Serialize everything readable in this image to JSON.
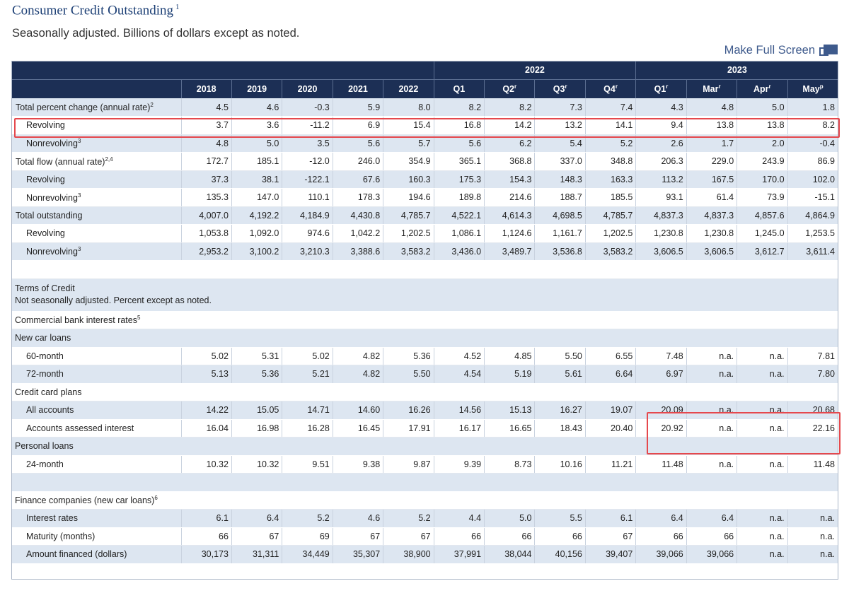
{
  "title": "Consumer Credit Outstanding",
  "title_note": "1",
  "subtitle": "Seasonally adjusted. Billions of dollars except as noted.",
  "fullscreen_label": "Make Full Screen",
  "fullscreen_icon": "fullscreen-icon",
  "header": {
    "years": [
      "2022",
      "2023"
    ],
    "columns": [
      {
        "label": "2018",
        "sup": ""
      },
      {
        "label": "2019",
        "sup": ""
      },
      {
        "label": "2020",
        "sup": ""
      },
      {
        "label": "2021",
        "sup": ""
      },
      {
        "label": "2022",
        "sup": ""
      },
      {
        "label": "Q1",
        "sup": ""
      },
      {
        "label": "Q2",
        "sup": "r"
      },
      {
        "label": "Q3",
        "sup": "r"
      },
      {
        "label": "Q4",
        "sup": "r"
      },
      {
        "label": "Q1",
        "sup": "r"
      },
      {
        "label": "Mar",
        "sup": "r"
      },
      {
        "label": "Apr",
        "sup": "r"
      },
      {
        "label": "May",
        "sup": "p"
      }
    ]
  },
  "rows_top": [
    {
      "label": "Total percent change (annual rate)",
      "sup": "2",
      "indent": false,
      "values": [
        "4.5",
        "4.6",
        "-0.3",
        "5.9",
        "8.0",
        "8.2",
        "8.2",
        "7.3",
        "7.4",
        "4.3",
        "4.8",
        "5.0",
        "1.8"
      ]
    },
    {
      "label": "Revolving",
      "sup": "",
      "indent": true,
      "values": [
        "3.7",
        "3.6",
        "-11.2",
        "6.9",
        "15.4",
        "16.8",
        "14.2",
        "13.2",
        "14.1",
        "9.4",
        "13.8",
        "13.8",
        "8.2"
      ]
    },
    {
      "label": "Nonrevolving",
      "sup": "3",
      "indent": true,
      "values": [
        "4.8",
        "5.0",
        "3.5",
        "5.6",
        "5.7",
        "5.6",
        "6.2",
        "5.4",
        "5.2",
        "2.6",
        "1.7",
        "2.0",
        "-0.4"
      ]
    },
    {
      "label": "Total flow (annual rate)",
      "sup": "2,4",
      "indent": false,
      "values": [
        "172.7",
        "185.1",
        "-12.0",
        "246.0",
        "354.9",
        "365.1",
        "368.8",
        "337.0",
        "348.8",
        "206.3",
        "229.0",
        "243.9",
        "86.9"
      ]
    },
    {
      "label": "Revolving",
      "sup": "",
      "indent": true,
      "values": [
        "37.3",
        "38.1",
        "-122.1",
        "67.6",
        "160.3",
        "175.3",
        "154.3",
        "148.3",
        "163.3",
        "113.2",
        "167.5",
        "170.0",
        "102.0"
      ]
    },
    {
      "label": "Nonrevolving",
      "sup": "3",
      "indent": true,
      "values": [
        "135.3",
        "147.0",
        "110.1",
        "178.3",
        "194.6",
        "189.8",
        "214.6",
        "188.7",
        "185.5",
        "93.1",
        "61.4",
        "73.9",
        "-15.1"
      ]
    },
    {
      "label": "Total outstanding",
      "sup": "",
      "indent": false,
      "values": [
        "4,007.0",
        "4,192.2",
        "4,184.9",
        "4,430.8",
        "4,785.7",
        "4,522.1",
        "4,614.3",
        "4,698.5",
        "4,785.7",
        "4,837.3",
        "4,837.3",
        "4,857.6",
        "4,864.9"
      ]
    },
    {
      "label": "Revolving",
      "sup": "",
      "indent": true,
      "values": [
        "1,053.8",
        "1,092.0",
        "974.6",
        "1,042.2",
        "1,202.5",
        "1,086.1",
        "1,124.6",
        "1,161.7",
        "1,202.5",
        "1,230.8",
        "1,230.8",
        "1,245.0",
        "1,253.5"
      ]
    },
    {
      "label": "Nonrevolving",
      "sup": "3",
      "indent": true,
      "values": [
        "2,953.2",
        "3,100.2",
        "3,210.3",
        "3,388.6",
        "3,583.2",
        "3,436.0",
        "3,489.7",
        "3,536.8",
        "3,583.2",
        "3,606.5",
        "3,606.5",
        "3,612.7",
        "3,611.4"
      ]
    }
  ],
  "terms": {
    "title": "Terms of Credit",
    "note": "Not seasonally adjusted. Percent except as noted."
  },
  "bank_section": {
    "label": "Commercial bank interest rates",
    "sup": "5"
  },
  "new_car_section": "New car loans",
  "new_car_rows": [
    {
      "label": "60-month",
      "values": [
        "5.02",
        "5.31",
        "5.02",
        "4.82",
        "5.36",
        "4.52",
        "4.85",
        "5.50",
        "6.55",
        "7.48",
        "n.a.",
        "n.a.",
        "7.81"
      ]
    },
    {
      "label": "72-month",
      "values": [
        "5.13",
        "5.36",
        "5.21",
        "4.82",
        "5.50",
        "4.54",
        "5.19",
        "5.61",
        "6.64",
        "6.97",
        "n.a.",
        "n.a.",
        "7.80"
      ]
    }
  ],
  "credit_card_section": "Credit card plans",
  "credit_card_rows": [
    {
      "label": "All accounts",
      "values": [
        "14.22",
        "15.05",
        "14.71",
        "14.60",
        "16.26",
        "14.56",
        "15.13",
        "16.27",
        "19.07",
        "20.09",
        "n.a.",
        "n.a.",
        "20.68"
      ]
    },
    {
      "label": "Accounts assessed interest",
      "values": [
        "16.04",
        "16.98",
        "16.28",
        "16.45",
        "17.91",
        "16.17",
        "16.65",
        "18.43",
        "20.40",
        "20.92",
        "n.a.",
        "n.a.",
        "22.16"
      ]
    }
  ],
  "personal_section": "Personal loans",
  "personal_rows": [
    {
      "label": "24-month",
      "values": [
        "10.32",
        "10.32",
        "9.51",
        "9.38",
        "9.87",
        "9.39",
        "8.73",
        "10.16",
        "11.21",
        "11.48",
        "n.a.",
        "n.a.",
        "11.48"
      ]
    }
  ],
  "finance_section": {
    "label": "Finance companies (new car loans)",
    "sup": "6"
  },
  "finance_rows": [
    {
      "label": "Interest rates",
      "values": [
        "6.1",
        "6.4",
        "5.2",
        "4.6",
        "5.2",
        "4.4",
        "5.0",
        "5.5",
        "6.1",
        "6.4",
        "6.4",
        "n.a.",
        "n.a."
      ]
    },
    {
      "label": "Maturity (months)",
      "values": [
        "66",
        "67",
        "69",
        "67",
        "67",
        "66",
        "66",
        "66",
        "67",
        "66",
        "66",
        "n.a.",
        "n.a."
      ]
    },
    {
      "label": "Amount financed (dollars)",
      "values": [
        "30,173",
        "31,311",
        "34,449",
        "35,307",
        "38,900",
        "37,991",
        "38,044",
        "40,156",
        "39,407",
        "39,066",
        "39,066",
        "n.a.",
        "n.a."
      ]
    }
  ],
  "colors": {
    "header_bg": "#1c2f55",
    "shaded_row": "#dde6f1",
    "title": "#1c3f75",
    "highlight": "#e5484d"
  }
}
